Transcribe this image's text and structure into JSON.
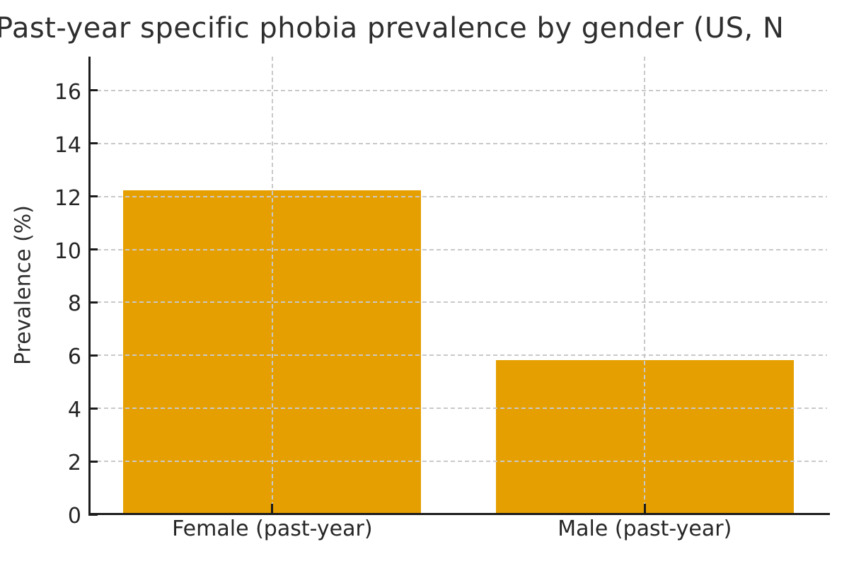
{
  "chart_data": {
    "type": "bar",
    "title": "Past-year specific phobia prevalence by gender (US, N",
    "title_truncated": true,
    "categories": [
      "Female (past-year)",
      "Male (past-year)"
    ],
    "values": [
      12.2,
      5.8
    ],
    "xlabel": "",
    "ylabel": "Prevalence (%)",
    "yticks": [
      0,
      2,
      4,
      6,
      8,
      10,
      12,
      14,
      16
    ],
    "ylim": [
      0,
      17.3
    ],
    "bar_color": "#E69F00",
    "grid": true,
    "grid_style": "dashed",
    "grid_color": "#C9C9C9",
    "grid_above_bars": true,
    "spine_color": "#1C1C1C",
    "text_color": "#262626",
    "legend": false
  }
}
